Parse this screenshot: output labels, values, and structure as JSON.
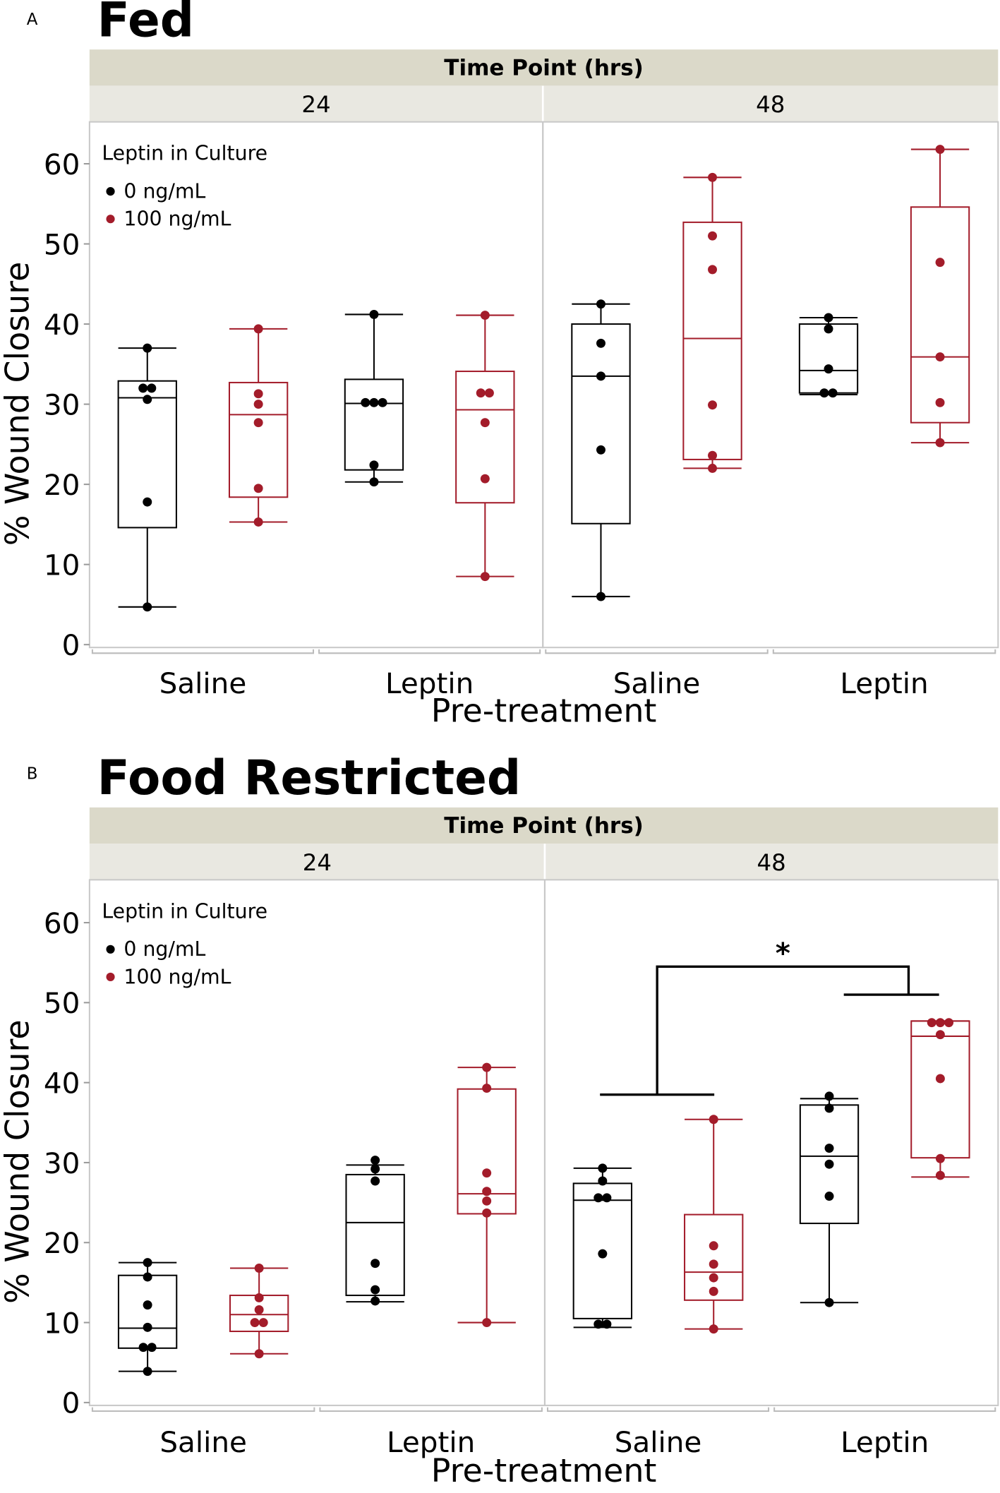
{
  "colors": {
    "control": "#000000",
    "leptin": "#a31c2a",
    "strip_top": "#dbd9c9",
    "strip_sub": "#e9e8e1"
  },
  "chart_data": [
    {
      "type": "box",
      "panel_letter": "A",
      "title": "Fed",
      "facet_title": "Time Point (hrs)",
      "facets": [
        "24",
        "48"
      ],
      "xlabel": "Pre-treatment",
      "ylabel": "% Wound Closure",
      "ylim": [
        0,
        65
      ],
      "yticks": [
        0,
        10,
        20,
        30,
        40,
        50,
        60
      ],
      "categories": [
        "Saline",
        "Leptin"
      ],
      "legend": {
        "title": "Leptin in Culture",
        "entries": [
          "0 ng/mL",
          "100 ng/mL"
        ],
        "position": "top-left"
      },
      "groups": [
        {
          "facet": "24",
          "category": "Saline",
          "series": "0 ng/mL",
          "whisker_low": 4.7,
          "q1": 14.6,
          "median": 30.8,
          "q3": 32.9,
          "whisker_high": 37.0,
          "points": [
            4.7,
            17.8,
            30.6,
            32.0,
            32.0,
            37.0
          ]
        },
        {
          "facet": "24",
          "category": "Saline",
          "series": "100 ng/mL",
          "whisker_low": 15.3,
          "q1": 18.4,
          "median": 28.7,
          "q3": 32.7,
          "whisker_high": 39.4,
          "points": [
            15.3,
            19.5,
            27.7,
            30.0,
            31.3,
            39.4
          ]
        },
        {
          "facet": "24",
          "category": "Leptin",
          "series": "0 ng/mL",
          "whisker_low": 20.3,
          "q1": 21.8,
          "median": 30.1,
          "q3": 33.1,
          "whisker_high": 41.2,
          "points": [
            20.3,
            22.4,
            30.2,
            30.2,
            30.2,
            41.2
          ]
        },
        {
          "facet": "24",
          "category": "Leptin",
          "series": "100 ng/mL",
          "whisker_low": 8.5,
          "q1": 17.7,
          "median": 29.3,
          "q3": 34.1,
          "whisker_high": 41.1,
          "points": [
            8.5,
            20.7,
            27.7,
            31.4,
            31.4,
            41.1
          ]
        },
        {
          "facet": "48",
          "category": "Saline",
          "series": "0 ng/mL",
          "whisker_low": 6.0,
          "q1": 15.1,
          "median": 33.5,
          "q3": 40.0,
          "whisker_high": 42.5,
          "points": [
            6.0,
            24.3,
            33.5,
            37.6,
            42.5
          ]
        },
        {
          "facet": "48",
          "category": "Saline",
          "series": "100 ng/mL",
          "whisker_low": 22.0,
          "q1": 23.1,
          "median": 38.2,
          "q3": 52.7,
          "whisker_high": 58.3,
          "points": [
            22.0,
            23.6,
            29.9,
            46.8,
            51.0,
            58.3
          ]
        },
        {
          "facet": "48",
          "category": "Leptin",
          "series": "0 ng/mL",
          "whisker_low": 31.2,
          "q1": 31.4,
          "median": 34.2,
          "q3": 40.0,
          "whisker_high": 40.8,
          "points": [
            31.4,
            31.4,
            34.4,
            39.4,
            40.8
          ]
        },
        {
          "facet": "48",
          "category": "Leptin",
          "series": "100 ng/mL",
          "whisker_low": 25.2,
          "q1": 27.7,
          "median": 35.9,
          "q3": 54.6,
          "whisker_high": 61.8,
          "points": [
            25.2,
            30.2,
            35.9,
            47.7,
            61.8
          ]
        }
      ]
    },
    {
      "type": "box",
      "panel_letter": "B",
      "title": "Food Restricted",
      "facet_title": "Time Point (hrs)",
      "facets": [
        "24",
        "48"
      ],
      "xlabel": "Pre-treatment",
      "ylabel": "% Wound Closure",
      "ylim": [
        0,
        65
      ],
      "yticks": [
        0,
        10,
        20,
        30,
        40,
        50,
        60
      ],
      "categories": [
        "Saline",
        "Leptin"
      ],
      "legend": {
        "title": "Leptin in Culture",
        "entries": [
          "0 ng/mL",
          "100 ng/mL"
        ],
        "position": "top-left"
      },
      "annotation": {
        "text": "*",
        "compares": [
          "48 Saline",
          "48 Leptin 100 ng/mL"
        ]
      },
      "groups": [
        {
          "facet": "24",
          "category": "Saline",
          "series": "0 ng/mL",
          "whisker_low": 3.9,
          "q1": 6.8,
          "median": 9.3,
          "q3": 15.9,
          "whisker_high": 17.5,
          "points": [
            3.9,
            6.9,
            6.9,
            9.4,
            12.2,
            15.7,
            17.5
          ]
        },
        {
          "facet": "24",
          "category": "Saline",
          "series": "100 ng/mL",
          "whisker_low": 6.1,
          "q1": 8.9,
          "median": 11.0,
          "q3": 13.4,
          "whisker_high": 16.8,
          "points": [
            6.1,
            10.0,
            10.0,
            11.6,
            13.1,
            16.8
          ]
        },
        {
          "facet": "24",
          "category": "Leptin",
          "series": "0 ng/mL",
          "whisker_low": 12.6,
          "q1": 13.4,
          "median": 22.5,
          "q3": 28.5,
          "whisker_high": 29.7,
          "points": [
            12.7,
            14.1,
            17.4,
            27.7,
            29.2,
            30.3
          ]
        },
        {
          "facet": "24",
          "category": "Leptin",
          "series": "100 ng/mL",
          "whisker_low": 10.0,
          "q1": 23.6,
          "median": 26.1,
          "q3": 39.2,
          "whisker_high": 41.9,
          "points": [
            10.0,
            23.7,
            25.2,
            26.4,
            28.7,
            39.3,
            41.9
          ]
        },
        {
          "facet": "48",
          "category": "Saline",
          "series": "0 ng/mL",
          "whisker_low": 9.4,
          "q1": 10.5,
          "median": 25.3,
          "q3": 27.4,
          "whisker_high": 29.3,
          "points": [
            9.8,
            9.8,
            18.6,
            25.6,
            25.6,
            27.7,
            29.3
          ]
        },
        {
          "facet": "48",
          "category": "Saline",
          "series": "100 ng/mL",
          "whisker_low": 9.2,
          "q1": 12.8,
          "median": 16.3,
          "q3": 23.5,
          "whisker_high": 35.4,
          "points": [
            9.2,
            13.9,
            15.6,
            17.3,
            19.6,
            35.4
          ]
        },
        {
          "facet": "48",
          "category": "Leptin",
          "series": "0 ng/mL",
          "whisker_low": 12.5,
          "q1": 22.4,
          "median": 30.8,
          "q3": 37.2,
          "whisker_high": 38.0,
          "points": [
            12.5,
            25.8,
            29.8,
            31.8,
            36.8,
            38.3
          ]
        },
        {
          "facet": "48",
          "category": "Leptin",
          "series": "100 ng/mL",
          "whisker_low": 28.2,
          "q1": 30.6,
          "median": 45.8,
          "q3": 47.7,
          "whisker_high": 47.7,
          "points": [
            28.4,
            30.5,
            40.5,
            46.0,
            47.5,
            47.5,
            47.5
          ]
        }
      ]
    }
  ]
}
